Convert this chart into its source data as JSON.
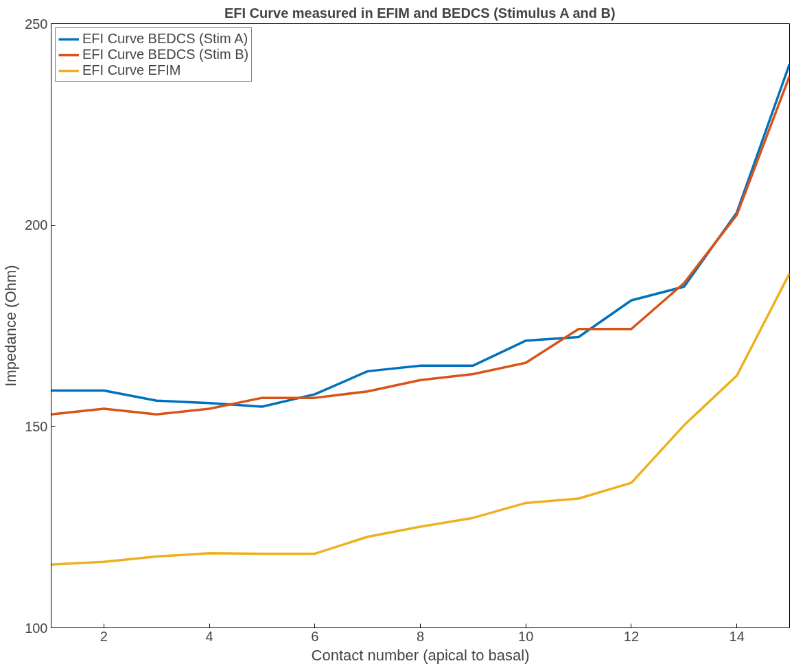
{
  "chart_data": {
    "type": "line",
    "title": "EFI Curve measured in EFIM and BEDCS (Stimulus A and B)",
    "xlabel": "Contact number (apical to basal)",
    "ylabel": "Impedance (Ohm)",
    "x": [
      1,
      2,
      3,
      4,
      5,
      6,
      7,
      8,
      9,
      10,
      11,
      12,
      13,
      14,
      15
    ],
    "series": [
      {
        "name": "EFI Curve BEDCS (Stim A)",
        "color": "#0072bd",
        "values": [
          158.9,
          158.9,
          156.4,
          155.8,
          154.9,
          158.0,
          163.7,
          165.1,
          165.1,
          171.3,
          172.2,
          181.3,
          184.7,
          203.1,
          240
        ]
      },
      {
        "name": "EFI Curve BEDCS (Stim B)",
        "color": "#d95319",
        "values": [
          153.0,
          154.4,
          153.0,
          154.4,
          157.1,
          157.1,
          158.7,
          161.5,
          163.0,
          165.8,
          174.2,
          174.2,
          185.6,
          202.5,
          237
        ]
      },
      {
        "name": "EFI Curve EFIM",
        "color": "#edb120",
        "values": [
          115.7,
          116.4,
          117.7,
          118.5,
          118.4,
          118.4,
          122.6,
          125.1,
          127.3,
          131.0,
          132.1,
          136.0,
          150.3,
          162.6,
          188
        ]
      }
    ],
    "xlim": [
      1,
      15
    ],
    "ylim": [
      100,
      250
    ],
    "xticks": [
      2,
      4,
      6,
      8,
      10,
      12,
      14
    ],
    "yticks": [
      100,
      150,
      200,
      250
    ],
    "grid": false,
    "legend": "top left",
    "line_style": "solid",
    "marker": "none"
  }
}
